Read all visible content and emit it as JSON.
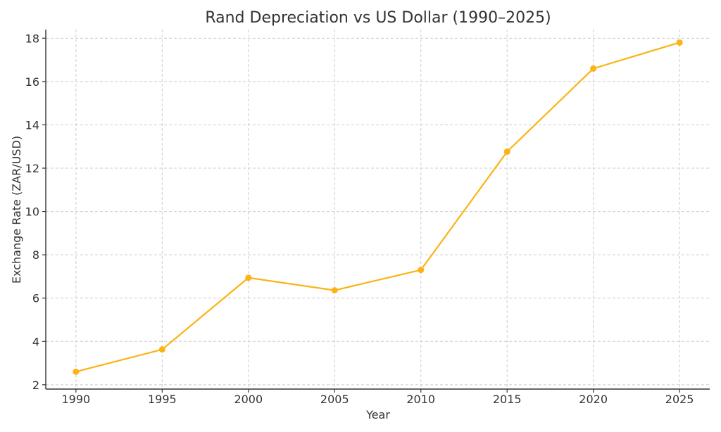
{
  "chart_data": {
    "type": "line",
    "title": "Rand Depreciation vs US Dollar (1990–2025)",
    "xlabel": "Year",
    "ylabel": "Exchange Rate (ZAR/USD)",
    "x": [
      1990,
      1995,
      2000,
      2005,
      2010,
      2015,
      2020,
      2025
    ],
    "xticks": [
      "1990",
      "1995",
      "2000",
      "2005",
      "2010",
      "2015",
      "2020",
      "2025"
    ],
    "yticks": [
      "2",
      "4",
      "6",
      "8",
      "10",
      "12",
      "14",
      "16",
      "18"
    ],
    "xlim": [
      1988.25,
      2026.75
    ],
    "ylim": [
      1.8,
      18.4
    ],
    "series": [
      {
        "values": [
          2.6,
          3.63,
          6.94,
          6.36,
          7.3,
          12.76,
          16.6,
          17.8
        ],
        "color": "#fbb315"
      }
    ],
    "grid": true,
    "legend": false
  }
}
